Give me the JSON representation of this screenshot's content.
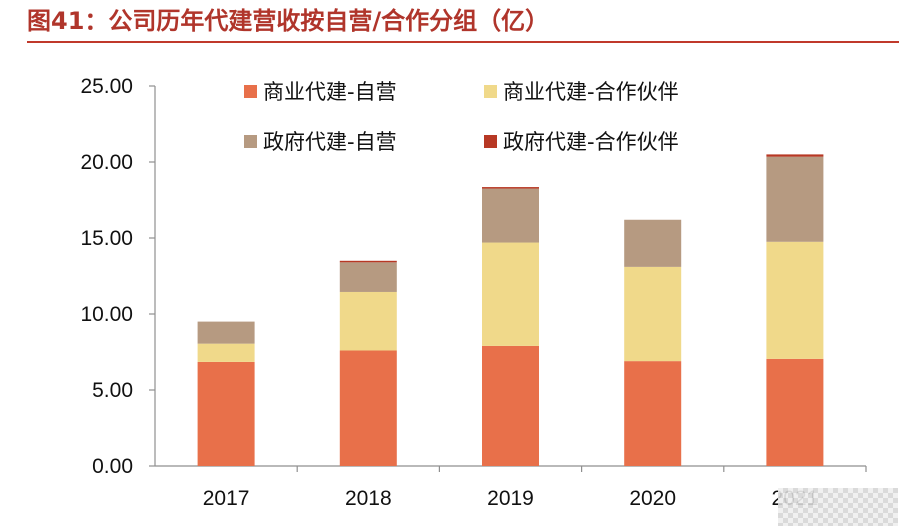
{
  "header": {
    "title": "图41：公司历年代建营收按自营/合作分组（亿）"
  },
  "colors": {
    "title": "#b0352b",
    "rule": "#c0392b",
    "axis": "#8f8f8f"
  },
  "chart_data": {
    "type": "bar",
    "stacked": true,
    "title": "",
    "xlabel": "",
    "ylabel": "",
    "categories": [
      "2017",
      "2018",
      "2019",
      "2020",
      "2021"
    ],
    "ylim": [
      0,
      25
    ],
    "yticks": [
      0,
      5,
      10,
      15,
      20,
      25
    ],
    "ytick_labels": [
      "0.00",
      "5.00",
      "10.00",
      "15.00",
      "20.00",
      "25.00"
    ],
    "grid": false,
    "legend_position": "top",
    "series": [
      {
        "name": "商业代建-自营",
        "color": "#e8704a",
        "values": [
          6.85,
          7.6,
          7.9,
          6.9,
          7.05
        ]
      },
      {
        "name": "商业代建-合作伙伴",
        "color": "#f0d98a",
        "values": [
          1.2,
          3.85,
          6.8,
          6.2,
          7.7
        ]
      },
      {
        "name": "政府代建-自营",
        "color": "#b69a81",
        "values": [
          1.45,
          1.95,
          3.55,
          3.1,
          5.6
        ]
      },
      {
        "name": "政府代建-合作伙伴",
        "color": "#b73824",
        "values": [
          0.0,
          0.1,
          0.1,
          0.0,
          0.15
        ]
      }
    ]
  }
}
